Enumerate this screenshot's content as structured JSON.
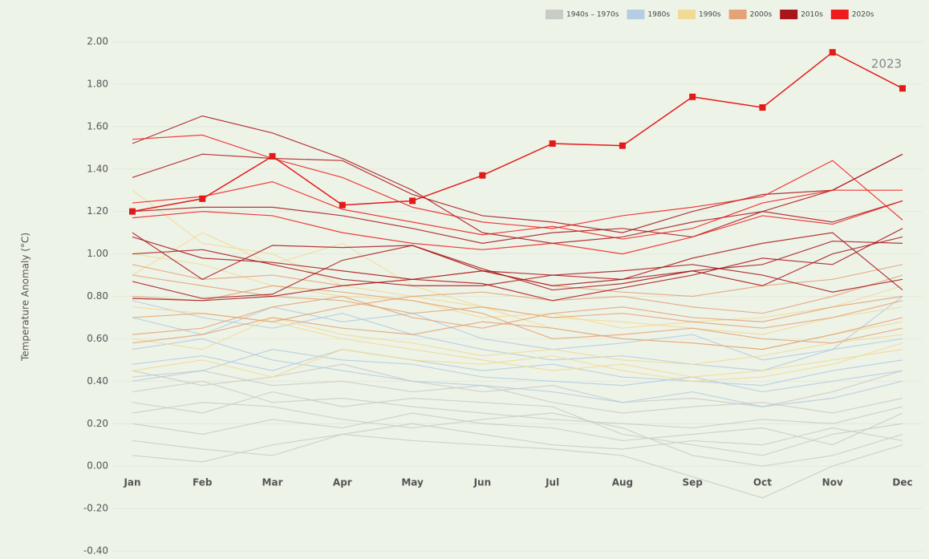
{
  "chart_data": {
    "type": "line",
    "y_label": "Temperature Anomaly (°C)",
    "categories": [
      "Jan",
      "Feb",
      "Mar",
      "Apr",
      "May",
      "Jun",
      "Jul",
      "Aug",
      "Sep",
      "Oct",
      "Nov",
      "Dec"
    ],
    "ylim": [
      -0.4,
      2.0
    ],
    "yticks": [
      {
        "value": 2.0,
        "label": "2.00"
      },
      {
        "value": 1.8,
        "label": "1.80"
      },
      {
        "value": 1.6,
        "label": "1.60"
      },
      {
        "value": 1.4,
        "label": "1.40"
      },
      {
        "value": 1.2,
        "label": "1.20"
      },
      {
        "value": 1.0,
        "label": "1.00"
      },
      {
        "value": 0.8,
        "label": "0.80"
      },
      {
        "value": 0.6,
        "label": "0.60"
      },
      {
        "value": 0.4,
        "label": "0.40"
      },
      {
        "value": 0.2,
        "label": "0.20"
      },
      {
        "value": 0,
        "label": "0.00"
      },
      {
        "value": -0.2,
        "label": "-0.20"
      },
      {
        "value": -0.4,
        "label": "-0.40"
      }
    ],
    "grid": true,
    "legend": "top-right",
    "series": [
      {
        "name": "1940s – 1970s",
        "color": "#c9ccc6",
        "lines": [
          [
            0.3,
            0.25,
            0.35,
            0.28,
            0.32,
            0.3,
            0.28,
            0.15,
            0.1,
            0.05,
            0.15,
            0.2
          ],
          [
            0.05,
            0.02,
            0.1,
            0.15,
            0.12,
            0.1,
            0.08,
            0.05,
            -0.05,
            -0.15,
            0.0,
            0.1
          ],
          [
            0.42,
            0.45,
            0.38,
            0.4,
            0.35,
            0.38,
            0.3,
            0.25,
            0.28,
            0.3,
            0.25,
            0.32
          ],
          [
            0.2,
            0.15,
            0.22,
            0.18,
            0.25,
            0.2,
            0.18,
            0.12,
            0.15,
            0.18,
            0.1,
            0.25
          ],
          [
            0.12,
            0.08,
            0.05,
            0.15,
            0.2,
            0.15,
            0.1,
            0.08,
            0.12,
            0.1,
            0.18,
            0.12
          ],
          [
            0.35,
            0.4,
            0.3,
            0.32,
            0.28,
            0.25,
            0.22,
            0.2,
            0.18,
            0.22,
            0.2,
            0.28
          ],
          [
            0.25,
            0.3,
            0.28,
            0.22,
            0.18,
            0.22,
            0.25,
            0.18,
            0.05,
            0.0,
            0.05,
            0.15
          ],
          [
            0.45,
            0.38,
            0.42,
            0.48,
            0.4,
            0.35,
            0.38,
            0.3,
            0.32,
            0.28,
            0.35,
            0.45
          ]
        ]
      },
      {
        "name": "1980s",
        "color": "#b4cde0",
        "lines": [
          [
            0.55,
            0.6,
            0.5,
            0.45,
            0.4,
            0.38,
            0.35,
            0.3,
            0.35,
            0.28,
            0.32,
            0.4
          ],
          [
            0.7,
            0.62,
            0.75,
            0.68,
            0.72,
            0.6,
            0.55,
            0.58,
            0.62,
            0.5,
            0.55,
            0.6
          ],
          [
            0.4,
            0.45,
            0.55,
            0.5,
            0.48,
            0.42,
            0.4,
            0.38,
            0.42,
            0.35,
            0.4,
            0.45
          ],
          [
            0.78,
            0.7,
            0.65,
            0.72,
            0.62,
            0.55,
            0.5,
            0.52,
            0.48,
            0.45,
            0.55,
            0.8
          ],
          [
            0.48,
            0.52,
            0.45,
            0.55,
            0.5,
            0.45,
            0.48,
            0.42,
            0.4,
            0.38,
            0.45,
            0.5
          ]
        ]
      },
      {
        "name": "1990s",
        "color": "#f1da96",
        "lines": [
          [
            1.3,
            1.05,
            1.0,
            0.85,
            0.8,
            0.75,
            0.7,
            0.68,
            0.65,
            0.62,
            0.7,
            0.75
          ],
          [
            0.9,
            1.1,
            0.95,
            1.05,
            0.85,
            0.75,
            0.65,
            0.6,
            0.58,
            0.55,
            0.62,
            0.68
          ],
          [
            0.6,
            0.55,
            0.7,
            0.62,
            0.58,
            0.52,
            0.55,
            0.5,
            0.48,
            0.52,
            0.58,
            0.62
          ],
          [
            0.75,
            0.72,
            0.68,
            0.6,
            0.55,
            0.5,
            0.45,
            0.48,
            0.42,
            0.45,
            0.5,
            0.55
          ],
          [
            0.45,
            0.5,
            0.42,
            0.55,
            0.5,
            0.48,
            0.52,
            0.45,
            0.4,
            0.42,
            0.48,
            0.58
          ],
          [
            1.0,
            0.95,
            0.85,
            0.8,
            0.78,
            0.7,
            0.72,
            0.65,
            0.68,
            0.7,
            0.75,
            0.85
          ]
        ]
      },
      {
        "name": "2000s",
        "color": "#e3a377",
        "lines": [
          [
            0.9,
            0.85,
            0.8,
            0.78,
            0.72,
            0.75,
            0.7,
            0.72,
            0.68,
            0.65,
            0.7,
            0.78
          ],
          [
            0.62,
            0.65,
            0.75,
            0.8,
            0.7,
            0.65,
            0.72,
            0.75,
            0.7,
            0.68,
            0.75,
            0.8
          ],
          [
            0.8,
            0.78,
            0.85,
            0.82,
            0.78,
            0.72,
            0.6,
            0.62,
            0.65,
            0.6,
            0.58,
            0.65
          ],
          [
            0.7,
            0.72,
            0.68,
            0.75,
            0.8,
            0.82,
            0.78,
            0.8,
            0.75,
            0.72,
            0.8,
            0.9
          ],
          [
            0.58,
            0.62,
            0.7,
            0.65,
            0.62,
            0.68,
            0.65,
            0.6,
            0.58,
            0.55,
            0.62,
            0.7
          ],
          [
            0.95,
            0.88,
            0.9,
            0.85,
            0.88,
            0.92,
            0.85,
            0.82,
            0.8,
            0.85,
            0.88,
            0.95
          ]
        ]
      },
      {
        "name": "2010s",
        "color": "#a8151a",
        "lines": [
          [
            1.52,
            1.65,
            1.57,
            1.45,
            1.3,
            1.1,
            1.05,
            1.08,
            1.15,
            1.2,
            1.3,
            1.47
          ],
          [
            1.36,
            1.47,
            1.45,
            1.44,
            1.28,
            1.18,
            1.15,
            1.1,
            1.2,
            1.28,
            1.3,
            1.47
          ],
          [
            1.1,
            0.88,
            1.04,
            1.03,
            1.04,
            0.92,
            0.85,
            0.88,
            0.98,
            1.05,
            1.1,
            0.83
          ],
          [
            0.87,
            0.79,
            0.81,
            0.97,
            1.04,
            0.93,
            0.83,
            0.86,
            0.92,
            0.95,
            1.06,
            1.05
          ],
          [
            1.08,
            0.98,
            0.96,
            0.92,
            0.88,
            0.86,
            0.78,
            0.84,
            0.9,
            0.98,
            0.95,
            1.12
          ],
          [
            0.79,
            0.78,
            0.8,
            0.85,
            0.88,
            0.92,
            0.9,
            0.92,
            0.95,
            0.9,
            0.82,
            0.88
          ],
          [
            1.2,
            1.22,
            1.22,
            1.18,
            1.12,
            1.05,
            1.1,
            1.12,
            1.08,
            1.2,
            1.15,
            1.25
          ],
          [
            1.0,
            1.02,
            0.95,
            0.88,
            0.85,
            0.85,
            0.9,
            0.88,
            0.92,
            0.85,
            1.0,
            1.08
          ]
        ]
      },
      {
        "name": "2020s",
        "color": "#ee1c1c",
        "lines": [
          [
            1.54,
            1.56,
            1.45,
            1.36,
            1.22,
            1.15,
            1.12,
            1.18,
            1.22,
            1.27,
            1.44,
            1.16
          ],
          [
            1.24,
            1.27,
            1.34,
            1.21,
            1.15,
            1.09,
            1.13,
            1.07,
            1.12,
            1.24,
            1.3,
            1.3
          ],
          [
            1.17,
            1.2,
            1.18,
            1.1,
            1.05,
            1.02,
            1.05,
            1.0,
            1.08,
            1.18,
            1.14,
            1.25
          ]
        ]
      }
    ],
    "highlight": {
      "name": "2023",
      "color": "#e31a1a",
      "markers": true,
      "values": [
        1.2,
        1.26,
        1.46,
        1.23,
        1.25,
        1.37,
        1.52,
        1.51,
        1.74,
        1.69,
        1.95,
        1.78
      ]
    }
  }
}
